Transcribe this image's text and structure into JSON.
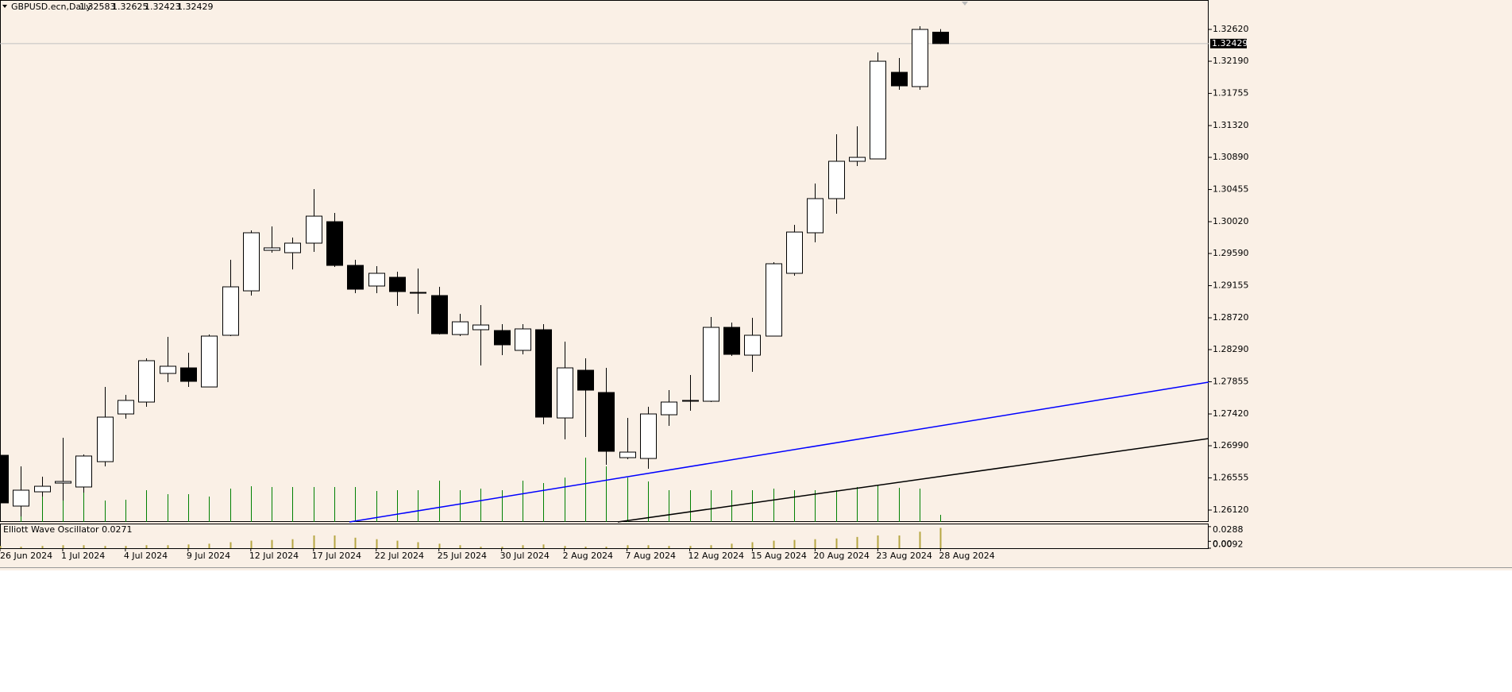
{
  "chart_data": {
    "type": "candlestick",
    "title": "GBPUSD.ecn,Daily",
    "header_values": [
      "1.32583",
      "1.32625",
      "1.32423",
      "1.32429"
    ],
    "categories": [
      "26 Jun 2024",
      null,
      null,
      "1 Jul 2024",
      null,
      null,
      "4 Jul 2024",
      null,
      null,
      "9 Jul 2024",
      null,
      null,
      "12 Jul 2024",
      null,
      null,
      "17 Jul 2024",
      null,
      null,
      "22 Jul 2024",
      null,
      null,
      "25 Jul 2024",
      null,
      null,
      "30 Jul 2024",
      null,
      null,
      "2 Aug 2024",
      null,
      null,
      "7 Aug 2024",
      null,
      null,
      "12 Aug 2024",
      null,
      null,
      "15 Aug 2024",
      null,
      null,
      "20 Aug 2024",
      null,
      null,
      "23 Aug 2024",
      null,
      null,
      "28 Aug 2024"
    ],
    "open": [
      1.26861,
      1.26174,
      1.26367,
      1.26485,
      1.26432,
      1.26775,
      1.2742,
      1.27581,
      1.27968,
      1.28043,
      1.27785,
      1.28484,
      1.29085,
      1.29633,
      1.29601,
      1.2973,
      1.3002,
      1.29429,
      1.2915,
      1.29268,
      1.29064,
      1.29021,
      1.28494,
      1.28559,
      1.28548,
      1.2828,
      1.28559,
      1.27366,
      1.28011,
      1.2771,
      1.26829,
      1.26818,
      1.27409,
      1.27592,
      1.27592,
      1.28591,
      1.28215,
      1.28473,
      1.29322,
      1.2987,
      1.30332,
      1.30837,
      1.30869,
      1.3204,
      1.31847,
      1.32583
    ],
    "high": [
      1.26861,
      1.26711,
      1.26571,
      1.27098,
      1.26872,
      1.27785,
      1.27678,
      1.28172,
      1.28462,
      1.28247,
      1.28494,
      1.29504,
      1.29902,
      1.29956,
      1.29805,
      1.30461,
      1.30138,
      1.29504,
      1.29418,
      1.29343,
      1.29386,
      1.29139,
      1.28774,
      1.28892,
      1.28634,
      1.28634,
      1.28634,
      1.28398,
      1.28172,
      1.28043,
      1.27366,
      1.27517,
      1.27742,
      1.27947,
      1.28731,
      1.28656,
      1.2872,
      1.29472,
      1.29977,
      1.30536,
      1.31202,
      1.31309,
      1.32309,
      1.32233,
      1.32663,
      1.32625
    ],
    "low": [
      1.26195,
      1.26034,
      1.26303,
      1.26249,
      1.26356,
      1.26711,
      1.27356,
      1.27517,
      1.2785,
      1.27785,
      1.27785,
      1.28473,
      1.29021,
      1.29601,
      1.29375,
      1.29612,
      1.29408,
      1.29053,
      1.29053,
      1.28881,
      1.28774,
      1.28494,
      1.28473,
      1.28075,
      1.28215,
      1.28226,
      1.2728,
      1.27076,
      1.27108,
      1.26732,
      1.26808,
      1.26679,
      1.27259,
      1.27463,
      1.27581,
      1.28204,
      1.2799,
      1.28473,
      1.2929,
      1.29741,
      1.30128,
      1.30772,
      1.30869,
      1.31804,
      1.31804,
      1.32423
    ],
    "close": [
      1.26217,
      1.26389,
      1.26442,
      1.26507,
      1.26851,
      1.27377,
      1.27603,
      1.2814,
      1.28065,
      1.27861,
      1.28473,
      1.29139,
      1.2987,
      1.29666,
      1.2973,
      1.30095,
      1.29429,
      1.29107,
      1.29322,
      1.29075,
      1.29053,
      1.28505,
      1.28666,
      1.28623,
      1.28355,
      1.2857,
      1.27377,
      1.28043,
      1.27742,
      1.26915,
      1.26904,
      1.2742,
      1.27581,
      1.27603,
      1.28591,
      1.28226,
      1.28484,
      1.29451,
      1.2988,
      1.30332,
      1.30837,
      1.3089,
      1.3219,
      1.31857,
      1.3262,
      1.32429
    ],
    "volume_bar_tops": [
      null,
      1.26356,
      1.26356,
      1.27098,
      1.26356,
      1.26249,
      1.2626,
      1.26389,
      1.26335,
      1.26335,
      1.26303,
      1.2641,
      1.26442,
      1.26432,
      1.26432,
      1.26432,
      1.26432,
      1.26432,
      1.26378,
      1.26389,
      1.26389,
      1.26518,
      1.26389,
      1.2641,
      1.26389,
      1.26518,
      1.26485,
      1.2656,
      1.26829,
      1.26711,
      1.2656,
      1.26507,
      1.26389,
      1.26389,
      1.26389,
      1.26389,
      1.26389,
      1.2641,
      1.26389,
      1.26389,
      1.26389,
      1.26432,
      1.26453,
      1.26421,
      1.2641,
      1.26056
    ],
    "bar_color": "#008000",
    "xlim": [
      0,
      57.83
    ],
    "ylim": [
      1.25959,
      1.33018
    ],
    "yticks": [
      {
        "value": 1.3262,
        "label": "1.32620"
      },
      {
        "value": 1.3219,
        "label": "1.32190"
      },
      {
        "value": 1.31755,
        "label": "1.31755"
      },
      {
        "value": 1.3132,
        "label": "1.31320"
      },
      {
        "value": 1.3089,
        "label": "1.30890"
      },
      {
        "value": 1.30455,
        "label": "1.30455"
      },
      {
        "value": 1.3002,
        "label": "1.30020"
      },
      {
        "value": 1.2959,
        "label": "1.29590"
      },
      {
        "value": 1.29155,
        "label": "1.29155"
      },
      {
        "value": 1.2872,
        "label": "1.28720"
      },
      {
        "value": 1.2829,
        "label": "1.28290"
      },
      {
        "value": 1.27855,
        "label": "1.27855"
      },
      {
        "value": 1.2742,
        "label": "1.27420"
      },
      {
        "value": 1.2699,
        "label": "1.26990"
      },
      {
        "value": 1.26555,
        "label": "1.26555"
      },
      {
        "value": 1.2612,
        "label": "1.26120"
      }
    ],
    "last_price": {
      "value": 1.32429,
      "label": "1.32429"
    },
    "trendlines": [
      {
        "color": "#0000ff",
        "points": [
          [
            16.72,
            1.25959
          ],
          [
            57.83,
            1.2785
          ]
        ]
      },
      {
        "color": "#000000",
        "points": [
          [
            29.56,
            1.25959
          ],
          [
            57.83,
            1.27087
          ]
        ]
      }
    ],
    "oscillator": {
      "title": "Elliott Wave Oscillator 0.0271",
      "color": "#b5a642",
      "values": [
        0.003,
        0.002,
        0.003,
        0.004,
        0.004,
        0.003,
        0.003,
        0.004,
        0.004,
        0.005,
        0.006,
        0.008,
        0.01,
        0.011,
        0.012,
        0.017,
        0.017,
        0.014,
        0.012,
        0.01,
        0.008,
        0.006,
        0.004,
        0.002,
        0.002,
        0.004,
        0.005,
        0.003,
        0.002,
        0.002,
        0.004,
        0.004,
        0.003,
        0.003,
        0.004,
        0.006,
        0.008,
        0.01,
        0.011,
        0.012,
        0.013,
        0.015,
        0.017,
        0.017,
        0.022,
        0.0271
      ],
      "ylim": [
        0,
        0.0318
      ],
      "yticks": [
        0.0288,
        0.0092,
        {
          "value": 0,
          "label": "0.00"
        }
      ]
    }
  }
}
